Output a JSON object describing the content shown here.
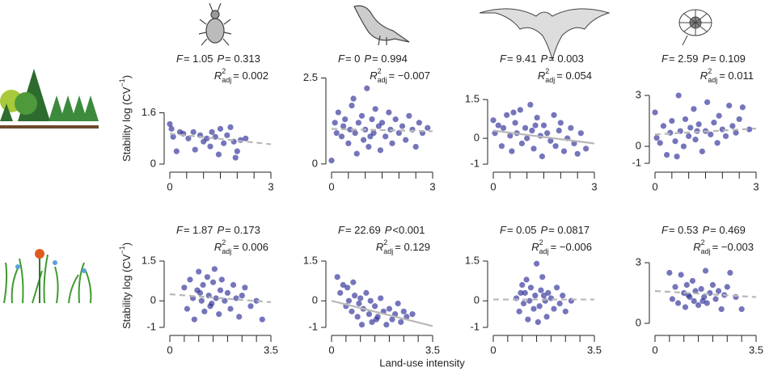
{
  "x_label": "Land-use intensity",
  "y_label": "Stability log (CV",
  "y_label_sup": "−1",
  "y_label_end": ")",
  "labels": {
    "F": "F",
    "P": "P",
    "R": "R",
    "sup": "2",
    "sub": "adj"
  },
  "chart_data": [
    {
      "type": "scatter",
      "color": "#2b2b96",
      "x": [
        0,
        0.05,
        0.1,
        0.2,
        0.3,
        0.4,
        0.55,
        0.7,
        0.75,
        0.9,
        1.0,
        1.1,
        1.2,
        1.25,
        1.35,
        1.45,
        1.5,
        1.6,
        1.7,
        1.8,
        1.9,
        1.95,
        2.0,
        2.1,
        2.25
      ],
      "y": [
        1.25,
        1.1,
        0.85,
        0.4,
        1.0,
        0.95,
        0.8,
        1.0,
        0.45,
        0.9,
        0.7,
        0.8,
        0.55,
        1.0,
        0.85,
        0.3,
        1.1,
        0.65,
        0.9,
        1.15,
        0.7,
        0.2,
        0.4,
        0.75,
        0.8
      ],
      "xlim": [
        0,
        3
      ],
      "xticks": [
        0,
        3
      ],
      "xminor": [
        0.5,
        1,
        1.5,
        2,
        2.5
      ],
      "ylim": [
        -0.05,
        2.9
      ],
      "yticks": [
        0,
        1.6
      ],
      "fit": {
        "x": [
          0,
          3
        ],
        "y": [
          0.95,
          0.62
        ],
        "style": "dashed"
      },
      "f_text": "= 1.05",
      "p_text": "= 0.313",
      "r2_text": "= 0.002"
    },
    {
      "type": "scatter",
      "color": "#2b2b96",
      "x": [
        0,
        0.1,
        0.15,
        0.2,
        0.3,
        0.35,
        0.4,
        0.5,
        0.55,
        0.6,
        0.7,
        0.75,
        0.8,
        0.9,
        0.95,
        1.0,
        1.05,
        1.1,
        1.2,
        1.25,
        1.3,
        1.4,
        1.45,
        1.5,
        1.6,
        1.7,
        1.75,
        1.8,
        1.9,
        2.0,
        2.1,
        2.2,
        2.3,
        2.4,
        2.5,
        2.6,
        2.7,
        2.85,
        0.65,
        1.15
      ],
      "y": [
        0.1,
        1.2,
        0.9,
        1.5,
        0.8,
        1.1,
        1.3,
        0.6,
        1.0,
        1.7,
        0.9,
        0.3,
        1.2,
        1.4,
        0.7,
        1.0,
        2.2,
        0.5,
        1.3,
        0.9,
        1.6,
        1.1,
        0.4,
        1.2,
        0.8,
        1.5,
        1.0,
        0.6,
        1.3,
        0.9,
        1.1,
        0.7,
        1.4,
        1.0,
        0.5,
        1.2,
        0.9,
        1.05,
        1.9,
        0.8
      ],
      "xlim": [
        0,
        3
      ],
      "xticks": [
        0,
        3
      ],
      "xminor": [
        0.5,
        1,
        1.5,
        2,
        2.5
      ],
      "ylim": [
        -0.05,
        2.7
      ],
      "yticks": [
        0,
        2.5
      ],
      "fit": {
        "x": [
          0,
          3
        ],
        "y": [
          1.02,
          0.95
        ],
        "style": "dashed"
      },
      "f_text": "= 0",
      "p_text": "= 0.994",
      "r2_text": "= −0.007"
    },
    {
      "type": "scatter",
      "color": "#2b2b96",
      "x": [
        0,
        0.05,
        0.15,
        0.25,
        0.3,
        0.4,
        0.5,
        0.55,
        0.65,
        0.7,
        0.8,
        0.85,
        0.95,
        1.0,
        1.1,
        1.15,
        1.2,
        1.3,
        1.4,
        1.45,
        1.5,
        1.6,
        1.7,
        1.8,
        1.85,
        1.95,
        2.0,
        2.1,
        2.2,
        2.3,
        2.4,
        2.5,
        2.6,
        2.75,
        0.6,
        1.25
      ],
      "y": [
        0.7,
        0.2,
        0.5,
        -0.3,
        0.4,
        0.9,
        0.1,
        -0.5,
        0.6,
        0.2,
        1.1,
        -0.2,
        0.4,
        0.0,
        1.3,
        0.3,
        -0.4,
        0.8,
        0.1,
        -0.7,
        0.5,
        0.2,
        -0.1,
        0.9,
        -0.3,
        0.3,
        0.6,
        -0.5,
        0.0,
        0.4,
        -0.2,
        -0.6,
        0.2,
        -0.4,
        1.0,
        0.5
      ],
      "xlim": [
        0,
        3
      ],
      "xticks": [
        0,
        3
      ],
      "xminor": [
        0.5,
        1,
        1.5,
        2,
        2.5
      ],
      "ylim": [
        -1.06,
        2.6
      ],
      "yticks": [
        -1,
        0,
        1.5
      ],
      "fit": {
        "x": [
          0,
          3
        ],
        "y": [
          0.3,
          -0.2
        ],
        "style": "solid"
      },
      "f_text": "= 9.41",
      "p_text": "= 0.003",
      "r2_text": "= 0.054"
    },
    {
      "type": "scatter",
      "color": "#2b2b96",
      "x": [
        0,
        0.05,
        0.15,
        0.25,
        0.35,
        0.45,
        0.5,
        0.6,
        0.7,
        0.75,
        0.85,
        0.9,
        1.0,
        1.05,
        1.15,
        1.2,
        1.3,
        1.4,
        1.5,
        1.55,
        1.65,
        1.75,
        1.85,
        1.9,
        2.0,
        2.1,
        2.2,
        2.3,
        2.4,
        2.5,
        2.6,
        2.8,
        0.65,
        1.25
      ],
      "y": [
        2.0,
        0.5,
        0.2,
        1.2,
        -0.5,
        0.8,
        1.5,
        0.3,
        3.0,
        0.9,
        0.0,
        1.6,
        0.6,
        1.1,
        2.2,
        0.4,
        1.3,
        -0.3,
        0.9,
        2.6,
        0.7,
        1.4,
        0.2,
        1.8,
        1.0,
        0.6,
        2.4,
        1.2,
        0.8,
        1.6,
        2.3,
        1.0,
        -0.6,
        0.9
      ],
      "xlim": [
        0,
        3
      ],
      "xticks": [
        0,
        3
      ],
      "xminor": [
        0.5,
        1,
        1.5,
        2,
        2.5
      ],
      "ylim": [
        -1.14,
        4.43
      ],
      "yticks": [
        -1,
        0,
        3
      ],
      "fit": {
        "x": [
          0,
          3
        ],
        "y": [
          0.7,
          1.05
        ],
        "style": "dashed"
      },
      "f_text": "= 2.59",
      "p_text": "= 0.109",
      "r2_text": "= 0.011"
    },
    {
      "type": "scatter",
      "color": "#2b2b96",
      "x": [
        0.5,
        0.6,
        0.7,
        0.8,
        0.85,
        0.95,
        1.0,
        1.1,
        1.15,
        1.2,
        1.3,
        1.35,
        1.4,
        1.5,
        1.55,
        1.6,
        1.7,
        1.75,
        1.8,
        1.9,
        2.0,
        2.1,
        2.2,
        2.3,
        2.4,
        2.5,
        2.6,
        2.8,
        3.0,
        3.2,
        1.05,
        1.45
      ],
      "y": [
        0.5,
        -0.3,
        0.8,
        0.1,
        -0.7,
        0.4,
        1.1,
        0.0,
        0.6,
        -0.4,
        0.9,
        0.2,
        -0.2,
        0.7,
        1.2,
        0.1,
        -0.5,
        0.4,
        0.8,
        0.0,
        0.3,
        -0.3,
        0.6,
        0.1,
        -0.6,
        0.2,
        0.5,
        -0.2,
        0.0,
        -0.7,
        0.3,
        -0.1
      ],
      "xlim": [
        0,
        3.5
      ],
      "xticks": [
        0,
        3.5
      ],
      "xminor": [
        0.5,
        1,
        1.5,
        2,
        2.5,
        3
      ],
      "ylim": [
        -1.06,
        2.2
      ],
      "yticks": [
        -1,
        0,
        1.5
      ],
      "fit": {
        "x": [
          0,
          3.5
        ],
        "y": [
          0.25,
          -0.05
        ],
        "style": "dashed"
      },
      "f_text": "= 1.87",
      "p_text": "= 0.173",
      "r2_text": "= 0.006"
    },
    {
      "type": "scatter",
      "color": "#2b2b96",
      "x": [
        0.2,
        0.3,
        0.4,
        0.5,
        0.55,
        0.6,
        0.7,
        0.75,
        0.8,
        0.9,
        1.0,
        1.05,
        1.1,
        1.2,
        1.3,
        1.35,
        1.4,
        1.5,
        1.6,
        1.7,
        1.8,
        1.9,
        2.0,
        2.1,
        2.2,
        2.3,
        2.4,
        2.5,
        2.6,
        2.8,
        0.95,
        1.55
      ],
      "y": [
        0.9,
        0.3,
        0.6,
        -0.2,
        0.5,
        0.0,
        -0.4,
        0.7,
        0.2,
        -0.6,
        0.1,
        -0.9,
        -0.3,
        0.3,
        -0.5,
        0.0,
        -0.8,
        -0.2,
        -0.6,
        0.1,
        -0.4,
        -0.9,
        -0.3,
        -0.7,
        -0.5,
        -0.1,
        -0.8,
        -0.4,
        -0.6,
        -0.5,
        -0.1,
        -0.7
      ],
      "xlim": [
        0,
        3.5
      ],
      "xticks": [
        0,
        3.5
      ],
      "xminor": [
        0.5,
        1,
        1.5,
        2,
        2.5,
        3
      ],
      "ylim": [
        -1.06,
        2.2
      ],
      "yticks": [
        -1,
        0,
        1.5
      ],
      "fit": {
        "x": [
          0,
          3.5
        ],
        "y": [
          0,
          -0.95
        ],
        "style": "solid"
      },
      "f_text": "= 22.69",
      "p_text": "<0.001",
      "r2_text": "= 0.129"
    },
    {
      "type": "scatter",
      "color": "#2b2b96",
      "x": [
        0.8,
        0.9,
        1.0,
        1.05,
        1.1,
        1.2,
        1.25,
        1.3,
        1.4,
        1.45,
        1.5,
        1.6,
        1.65,
        1.7,
        1.8,
        1.85,
        1.9,
        2.0,
        2.1,
        2.2,
        2.3,
        2.4,
        2.5,
        2.7,
        1.15,
        1.55,
        1.75,
        0.95
      ],
      "y": [
        0.1,
        -0.4,
        0.6,
        -0.1,
        0.3,
        -0.7,
        0.0,
        0.5,
        -0.3,
        0.2,
        1.4,
        -0.2,
        0.4,
        0.9,
        0.0,
        -0.6,
        0.3,
        0.1,
        -0.3,
        0.5,
        -0.1,
        0.2,
        -0.4,
        0.0,
        0.8,
        -0.8,
        0.2,
        0.3
      ],
      "xlim": [
        0,
        3.5
      ],
      "xticks": [
        0,
        3.5
      ],
      "xminor": [
        0.5,
        1,
        1.5,
        2,
        2.5,
        3
      ],
      "ylim": [
        -1.06,
        2.2
      ],
      "yticks": [
        -1,
        0,
        1.5
      ],
      "fit": {
        "x": [
          0,
          3.5
        ],
        "y": [
          0.05,
          0.05
        ],
        "style": "dashed"
      },
      "f_text": "= 0.05",
      "p_text": "= 0.0817",
      "r2_text": "= −0.006"
    },
    {
      "type": "scatter",
      "color": "#2b2b96",
      "x": [
        0.5,
        0.6,
        0.7,
        0.8,
        0.9,
        1.0,
        1.05,
        1.1,
        1.2,
        1.3,
        1.35,
        1.4,
        1.5,
        1.6,
        1.7,
        1.75,
        1.8,
        1.9,
        2.0,
        2.1,
        2.2,
        2.3,
        2.4,
        2.5,
        2.6,
        2.8,
        3.0,
        1.15,
        1.65
      ],
      "y": [
        2.5,
        1.2,
        1.8,
        1.0,
        2.4,
        1.5,
        0.8,
        1.9,
        1.3,
        2.1,
        1.1,
        1.6,
        0.9,
        1.7,
        1.3,
        2.6,
        1.0,
        1.5,
        1.9,
        1.2,
        1.6,
        0.7,
        1.4,
        1.8,
        2.5,
        1.3,
        0.7,
        1.4,
        1.1
      ],
      "xlim": [
        0,
        3.5
      ],
      "xticks": [
        0,
        3.5
      ],
      "xminor": [
        0.5,
        1,
        1.5,
        2,
        2.5,
        3
      ],
      "ylim": [
        -0.28,
        4.0
      ],
      "yticks": [
        0,
        3
      ],
      "fit": {
        "x": [
          0,
          3.5
        ],
        "y": [
          1.6,
          1.3
        ],
        "style": "dashed"
      },
      "f_text": "= 0.53",
      "p_text": "= 0.469",
      "r2_text": "= −0.003"
    }
  ]
}
